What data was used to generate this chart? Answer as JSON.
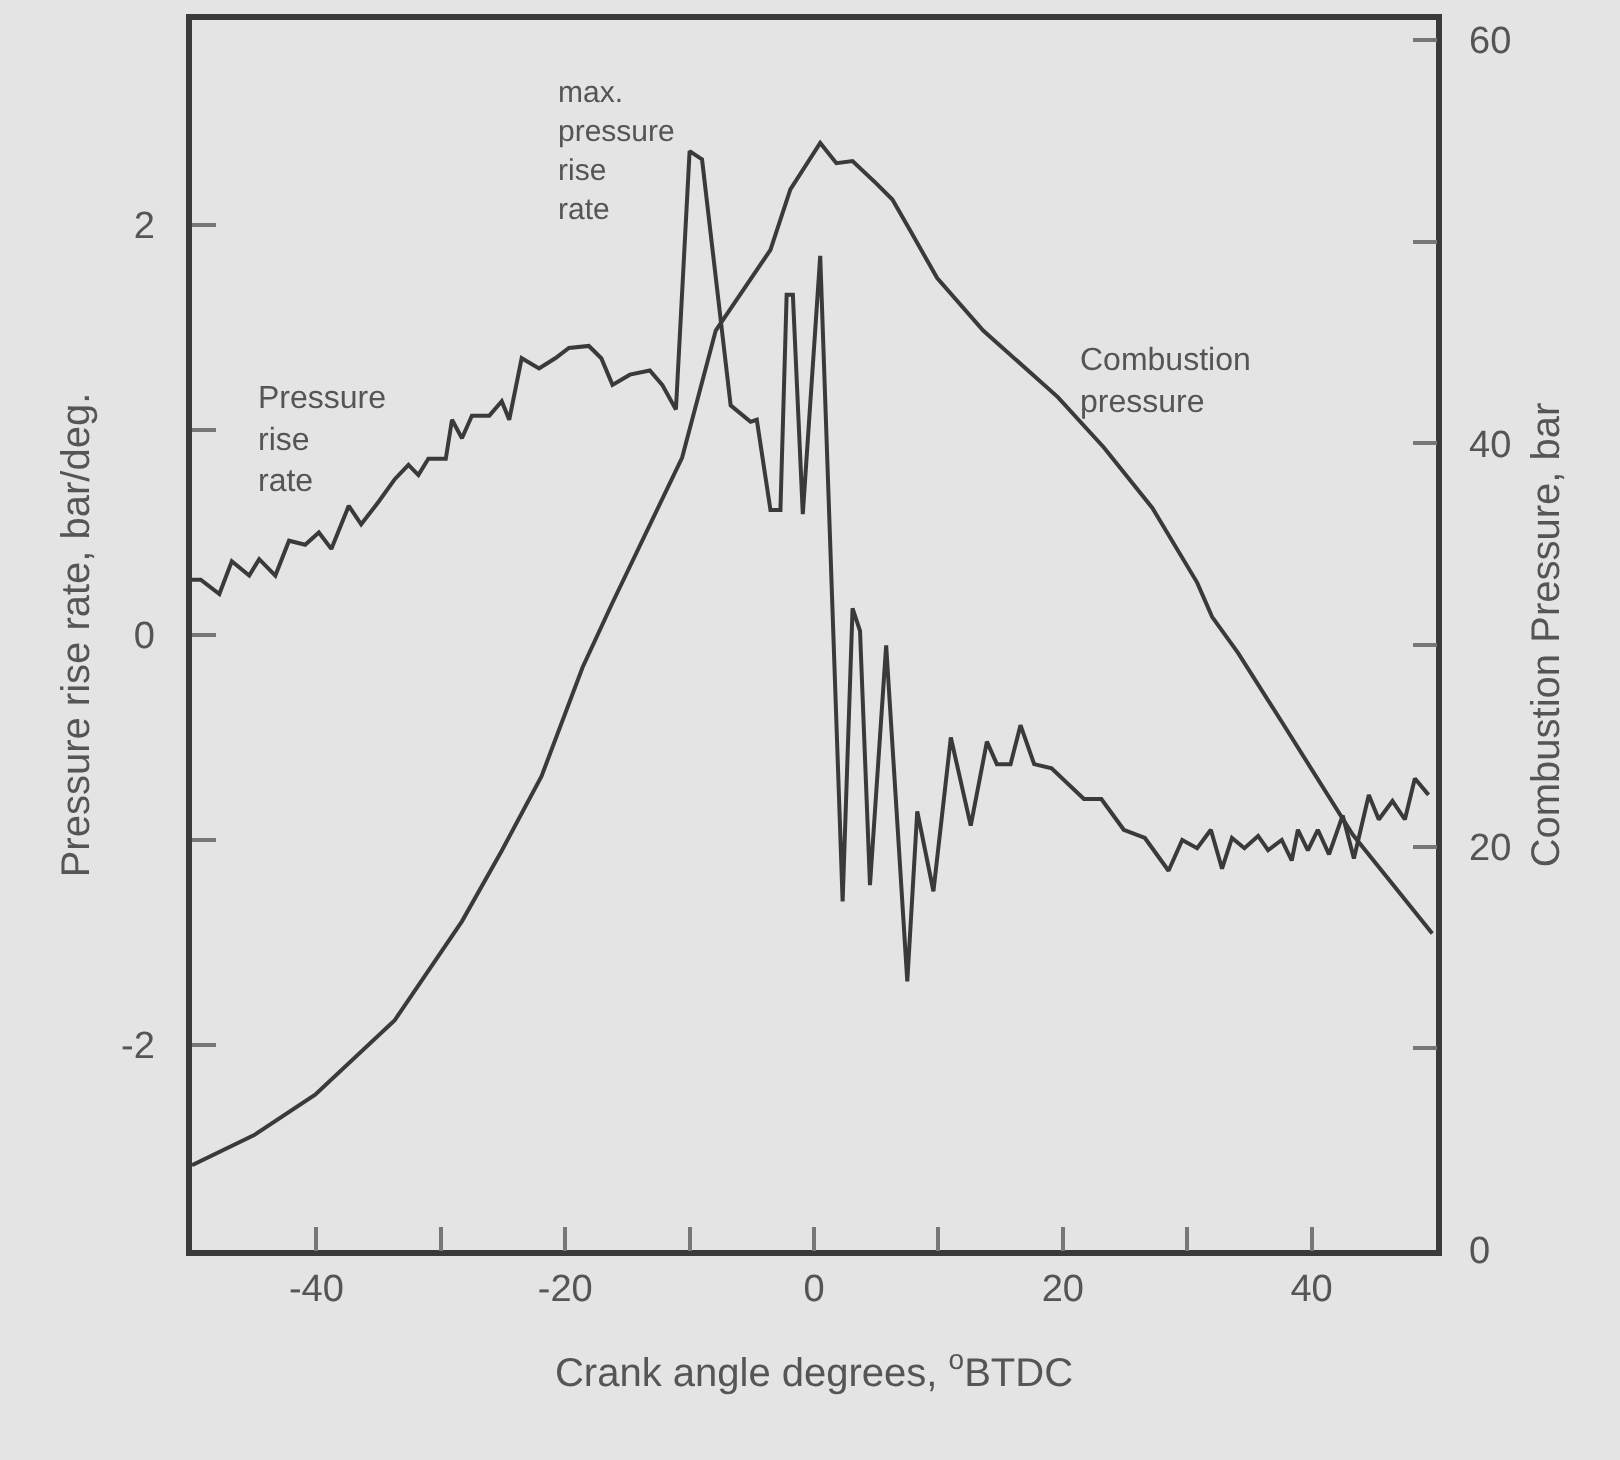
{
  "chart_data": {
    "type": "line",
    "xlabel": "Crank angle degrees, $^{o}$BTDC",
    "ylabel": "Pressure rise rate, bar/deg.",
    "y2label": "Combustion Pressure, bar",
    "xlim": [
      -50,
      50
    ],
    "xticks": [
      -40,
      {
        "value": -30,
        "label": null
      },
      -20,
      {
        "value": -10,
        "label": null
      },
      0,
      {
        "value": 10,
        "label": null
      },
      20,
      {
        "value": 30,
        "label": null
      },
      40
    ],
    "ylim": [
      -3,
      3
    ],
    "yticks": [
      -2,
      {
        "value": -1,
        "label": null
      },
      0,
      {
        "value": 1,
        "label": null
      },
      2
    ],
    "y2lim": [
      0,
      61
    ],
    "y2ticks": [
      0,
      {
        "value": 10,
        "label": null
      },
      20,
      {
        "value": 30,
        "label": null
      },
      40,
      {
        "value": 50,
        "label": null
      },
      60
    ],
    "grid": false,
    "legend": false,
    "marker": "none",
    "line_style": "solid",
    "series": [
      {
        "name": "Pressure rise rate",
        "color": "#3a3a3a",
        "x": [
          -50,
          -49.3,
          -47.8,
          -46.8,
          -45.4,
          -44.6,
          -43.3,
          -42.2,
          -40.9,
          -39.8,
          -38.8,
          -37.4,
          -36.4,
          -35,
          -33.7,
          -32.6,
          -31.8,
          -31,
          -29.6,
          -29.1,
          -28.3,
          -27.5,
          -26.1,
          -25.1,
          -24.5,
          -23.5,
          -22.1,
          -20.8,
          -19.7,
          -18.1,
          -17.1,
          -16.2,
          -14.8,
          -13.2,
          -12.2,
          -11.1,
          -10,
          -9,
          -6.7,
          -5.1,
          -4.6,
          -3.5,
          -2.7,
          -2.2,
          -1.7,
          -0.9,
          0.5,
          2.3,
          3.1,
          3.7,
          4.5,
          5.8,
          7.5,
          8.3,
          9.6,
          11,
          12.6,
          13.9,
          14.7,
          15.8,
          16.6,
          17.7,
          19.1,
          21.7,
          23.1,
          24.9,
          26.6,
          28.5,
          29.6,
          30.8,
          31.9,
          32.8,
          33.6,
          34.6,
          35.7,
          36.5,
          37.6,
          38.4,
          38.9,
          39.7,
          40.5,
          41.4,
          42.5,
          43.4,
          44.6,
          45.4,
          46.5,
          47.5,
          48.3,
          49.4
        ],
        "values": [
          0.27,
          0.27,
          0.2,
          0.36,
          0.29,
          0.37,
          0.29,
          0.46,
          0.44,
          0.5,
          0.42,
          0.63,
          0.54,
          0.65,
          0.76,
          0.83,
          0.78,
          0.86,
          0.86,
          1.05,
          0.96,
          1.07,
          1.07,
          1.14,
          1.05,
          1.35,
          1.3,
          1.35,
          1.4,
          1.41,
          1.35,
          1.22,
          1.27,
          1.29,
          1.22,
          1.1,
          2.36,
          2.32,
          1.12,
          1.04,
          1.05,
          0.61,
          0.61,
          1.66,
          1.66,
          0.59,
          1.85,
          -1.3,
          0.13,
          0.02,
          -1.22,
          -0.05,
          -1.69,
          -0.86,
          -1.25,
          -0.5,
          -0.93,
          -0.52,
          -0.63,
          -0.63,
          -0.44,
          -0.63,
          -0.65,
          -0.8,
          -0.8,
          -0.95,
          -0.99,
          -1.15,
          -1.0,
          -1.04,
          -0.95,
          -1.14,
          -0.99,
          -1.04,
          -0.98,
          -1.05,
          -1.0,
          -1.1,
          -0.95,
          -1.05,
          -0.95,
          -1.07,
          -0.88,
          -1.09,
          -0.78,
          -0.9,
          -0.81,
          -0.9,
          -0.7,
          -0.78
        ]
      },
      {
        "name": "Combustion pressure",
        "color": "#3a3a3a",
        "axis": "y2",
        "x": [
          -50,
          -45,
          -40.1,
          -33.7,
          -28.3,
          -25.1,
          -21.9,
          -18.6,
          -16.2,
          -10.6,
          -7.9,
          -3.5,
          -1.9,
          0.5,
          1.8,
          3.1,
          5,
          6.3,
          7.7,
          9.9,
          13.6,
          19.6,
          23.3,
          27.2,
          30.8,
          32,
          34.1,
          37.8,
          43.3,
          49.7
        ],
        "values": [
          4.2,
          5.7,
          7.7,
          11.4,
          16.3,
          19.8,
          23.5,
          28.9,
          32.1,
          39.3,
          45.6,
          49.6,
          52.6,
          54.9,
          53.9,
          54.0,
          52.9,
          52.1,
          50.6,
          48.2,
          45.6,
          42.3,
          39.8,
          36.8,
          33.1,
          31.4,
          29.6,
          26.0,
          20.6,
          15.7
        ]
      }
    ],
    "annotations": [
      {
        "text": "max. pressure rise rate",
        "x": -10,
        "y": 2.36
      }
    ]
  }
}
